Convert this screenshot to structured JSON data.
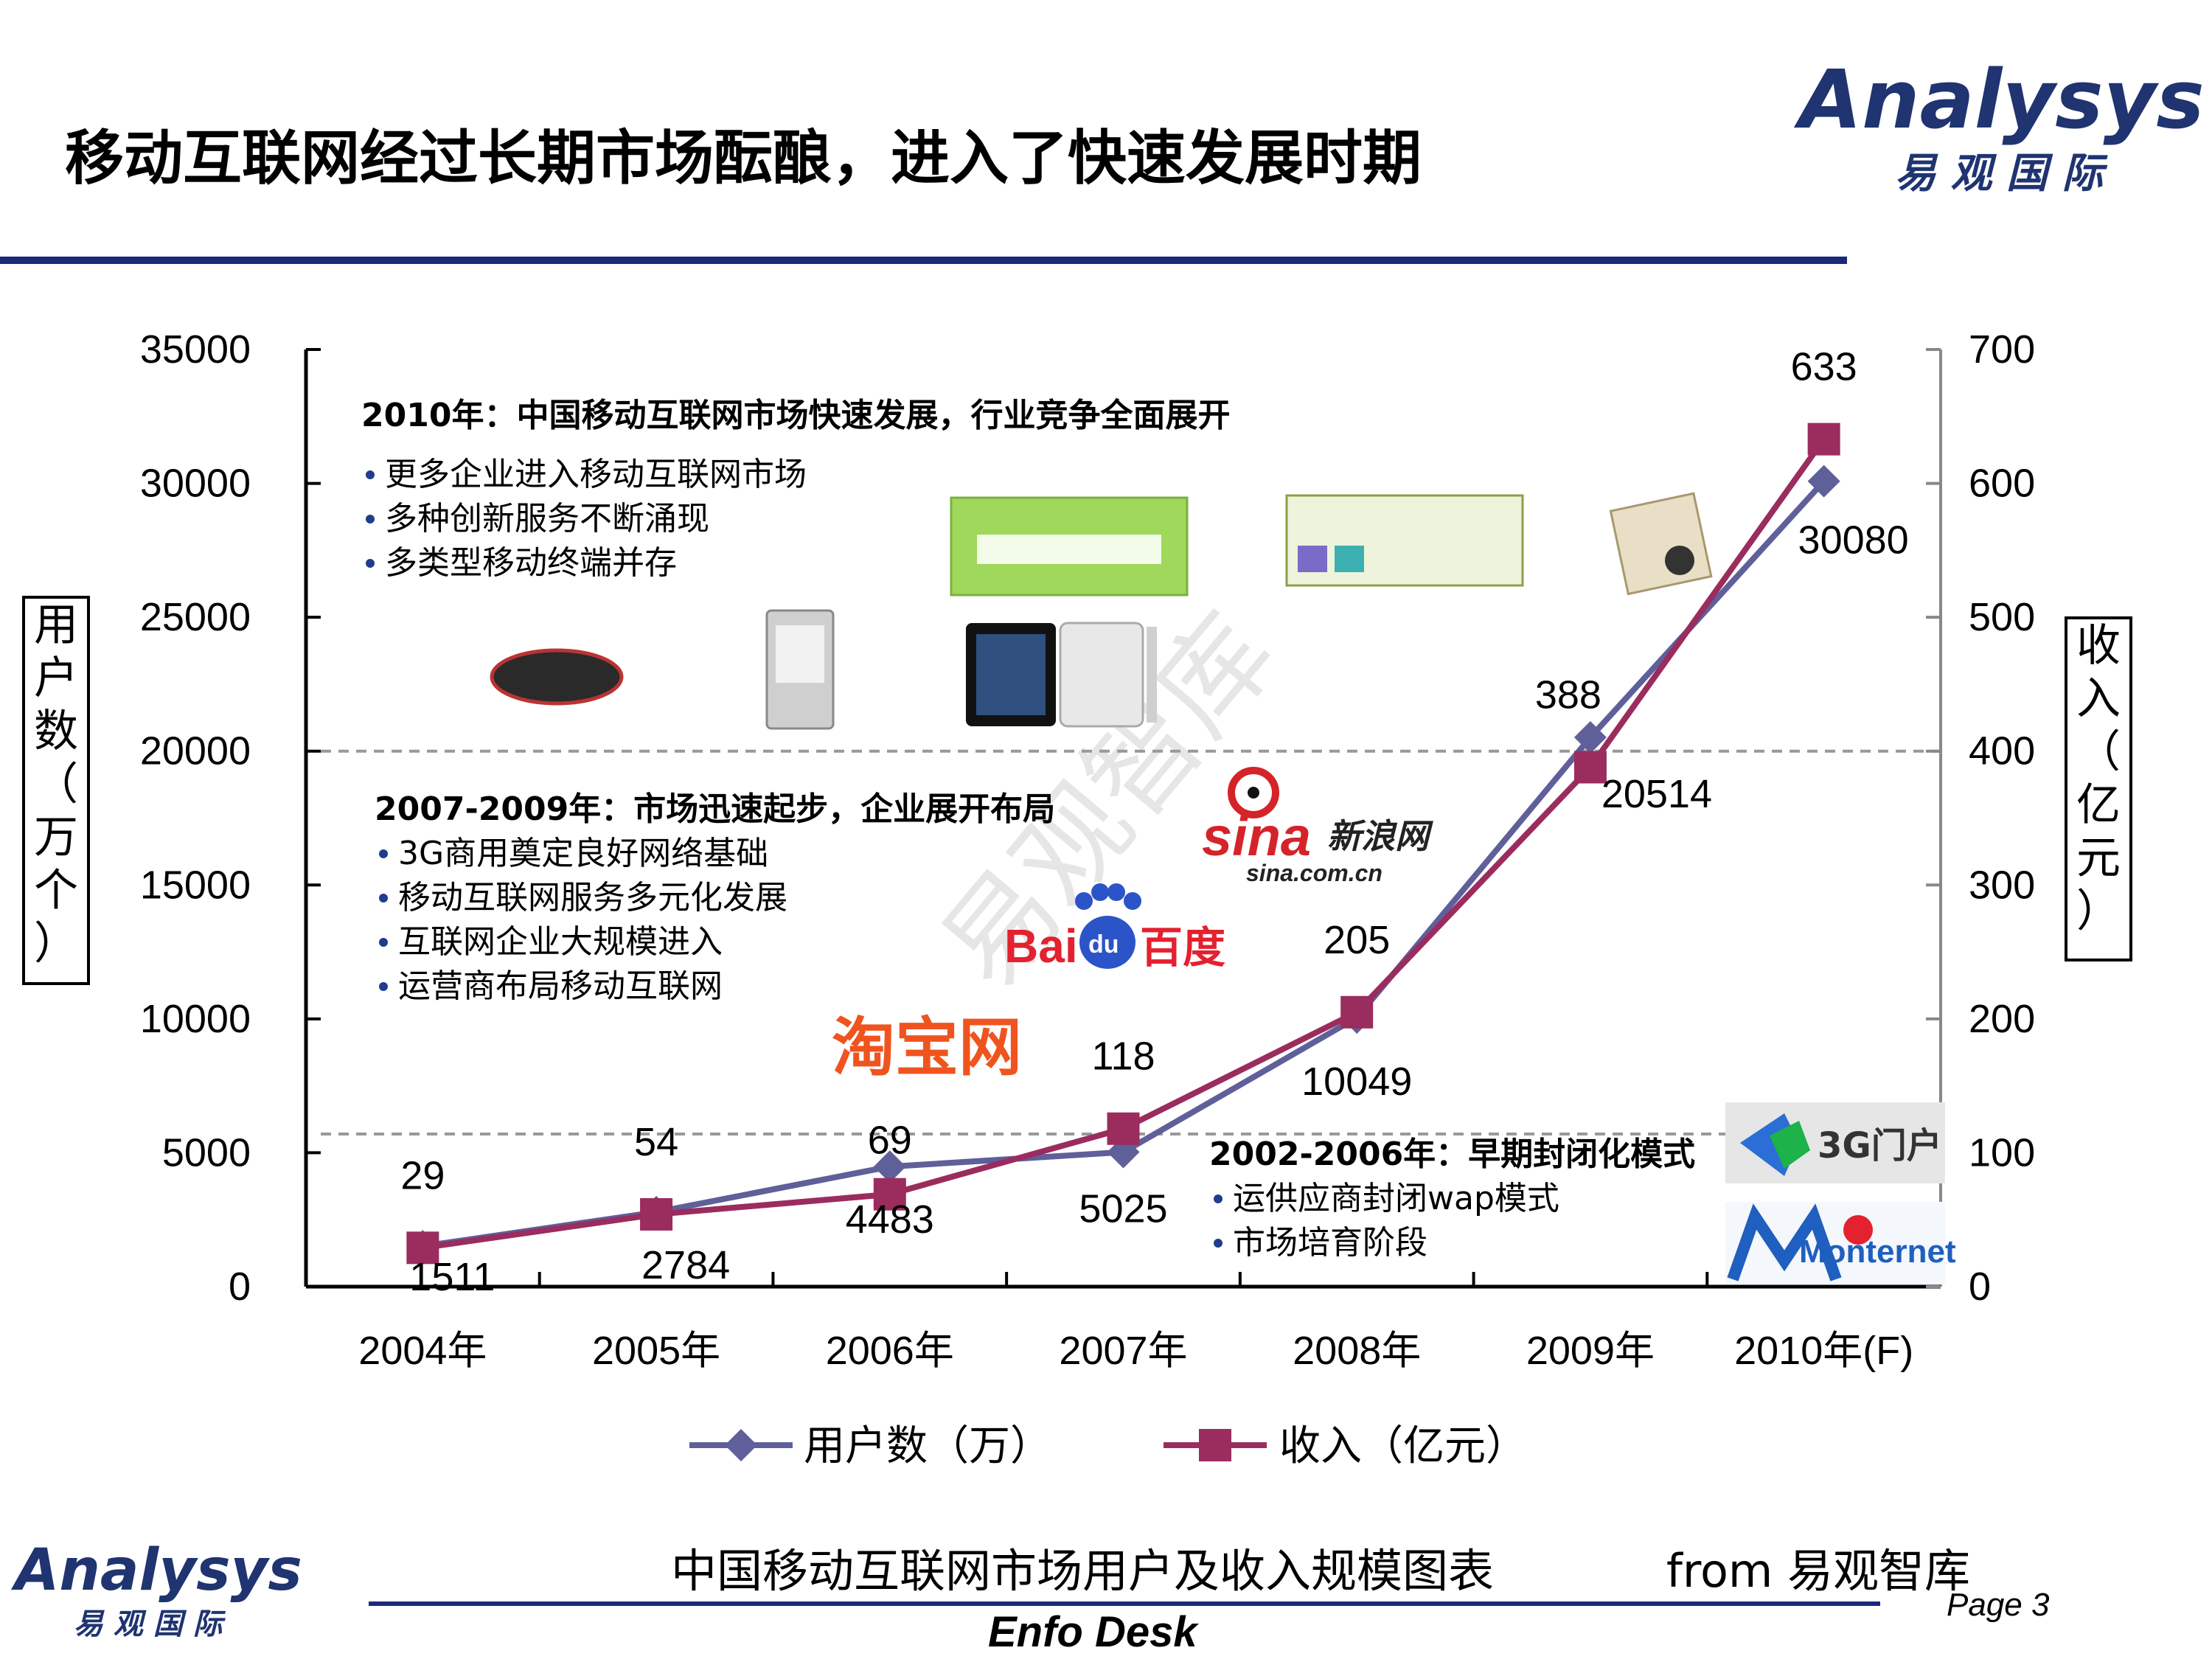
{
  "slide": {
    "title": "移动互联网经过长期市场酝酿，进入了快速发展时期",
    "caption": "中国移动互联网市场用户及收入规模图表",
    "source": "from 易观智库",
    "footer_brand": "Enfo Desk",
    "page": "Page 3"
  },
  "logo": {
    "word": "Analysys",
    "sub": "易 观 国 际",
    "color": "#1f3470"
  },
  "colors": {
    "users": "#5f5f9a",
    "revenue": "#9b2c5e",
    "rule": "#1a2a7a",
    "bullet": "#1f3d8c"
  },
  "axis_labels": {
    "left_chars": [
      "用",
      "户",
      "数",
      "（",
      "万",
      "个",
      "）"
    ],
    "right_chars": [
      "收",
      "入",
      "（",
      "亿",
      "元",
      "）"
    ]
  },
  "annotations": {
    "a2010": {
      "heading": "2010年：中国移动互联网市场快速发展，行业竞争全面展开",
      "items": [
        "更多企业进入移动互联网市场",
        "多种创新服务不断涌现",
        "多类型移动终端并存"
      ]
    },
    "a2007": {
      "heading": "2007-2009年：市场迅速起步，企业展开布局",
      "items": [
        "3G商用奠定良好网络基础",
        "移动互联网服务多元化发展",
        "互联网企业大规模进入",
        "运营商布局移动互联网"
      ]
    },
    "a2002": {
      "heading": "2002-2006年：早期封闭化模式",
      "items": [
        "运供应商封闭wap模式",
        "市场培育阶段"
      ]
    }
  },
  "brand_marks": {
    "taobao": "淘宝网",
    "baidu_a": "Bai",
    "baidu_b": "du",
    "baidu_c": "百度",
    "sina_a": "sina",
    "sina_b": "新浪网",
    "sina_c": "sina.com.cn",
    "g3": "3G门户",
    "monternet": "Monternet",
    "watermark": "易观智库"
  },
  "chart_data": {
    "type": "line",
    "categories": [
      "2004年",
      "2005年",
      "2006年",
      "2007年",
      "2008年",
      "2009年",
      "2010年(F)"
    ],
    "series": [
      {
        "name": "用户数（万）",
        "axis": "left",
        "marker": "diamond",
        "values": [
          1511,
          2784,
          4483,
          5025,
          10049,
          20514,
          30080
        ]
      },
      {
        "name": "收入（亿元）",
        "axis": "right",
        "marker": "square",
        "values": [
          29,
          54,
          69,
          118,
          205,
          388,
          633
        ]
      }
    ],
    "y_left": {
      "min": 0,
      "max": 35000,
      "ticks": [
        "0",
        "5000",
        "10000",
        "15000",
        "20000",
        "25000",
        "30000",
        "35000"
      ]
    },
    "y_right": {
      "min": 0,
      "max": 700,
      "ticks": [
        "0",
        "100",
        "200",
        "300",
        "400",
        "500",
        "600",
        "700"
      ]
    },
    "reference_lines": [
      20000,
      5700
    ],
    "legend_position": "bottom",
    "grid": false
  }
}
